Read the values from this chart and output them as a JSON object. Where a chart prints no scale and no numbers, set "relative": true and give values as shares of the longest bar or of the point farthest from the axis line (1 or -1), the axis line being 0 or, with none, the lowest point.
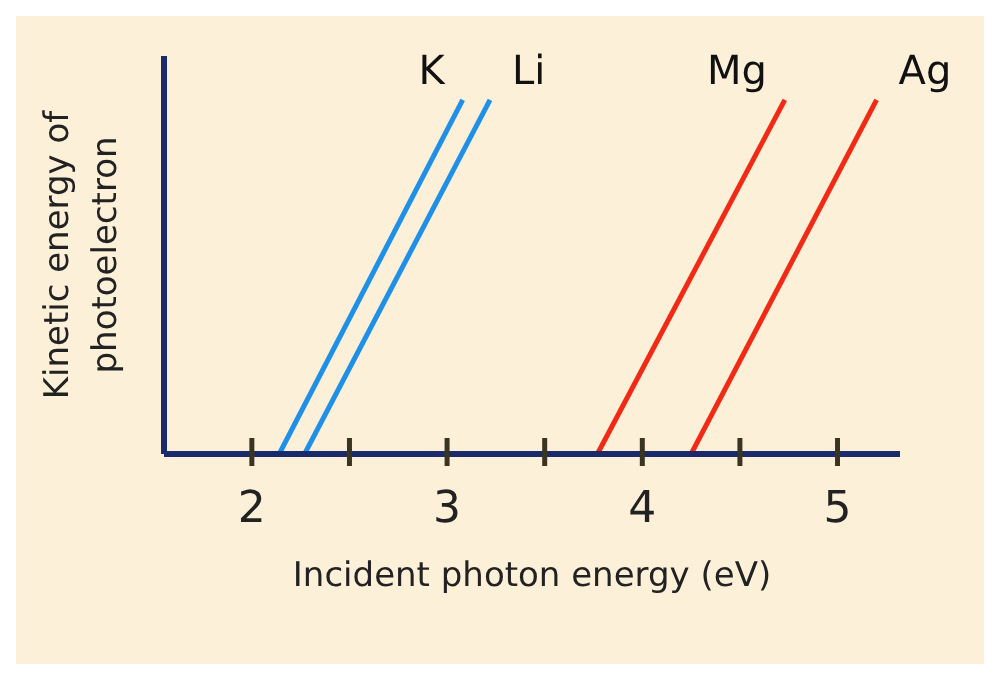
{
  "chart_data": {
    "type": "line",
    "relative": true,
    "xlabel": "Incident photon energy (eV)",
    "ylabel": "Kinetic energy of photoelectron",
    "xlim": [
      1.55,
      5.32
    ],
    "xticks": [
      2,
      {
        "value": 2.5,
        "label": null
      },
      3,
      {
        "value": 3.5,
        "label": null
      },
      4,
      {
        "value": 4.5,
        "label": null
      },
      5
    ],
    "marker": "none",
    "line_style": "solid",
    "series": [
      {
        "name": "K",
        "color": "#1e90e8",
        "x": [
          2.14,
          3.08
        ],
        "values": [
          0,
          1
        ]
      },
      {
        "name": "Li",
        "color": "#1e90e8",
        "x": [
          2.27,
          3.22
        ],
        "values": [
          0,
          1
        ]
      },
      {
        "name": "Mg",
        "color": "#f02a14",
        "x": [
          3.77,
          4.73
        ],
        "values": [
          0,
          1
        ]
      },
      {
        "name": "Ag",
        "color": "#f02a14",
        "x": [
          4.25,
          5.2
        ],
        "values": [
          0,
          1
        ]
      }
    ]
  }
}
